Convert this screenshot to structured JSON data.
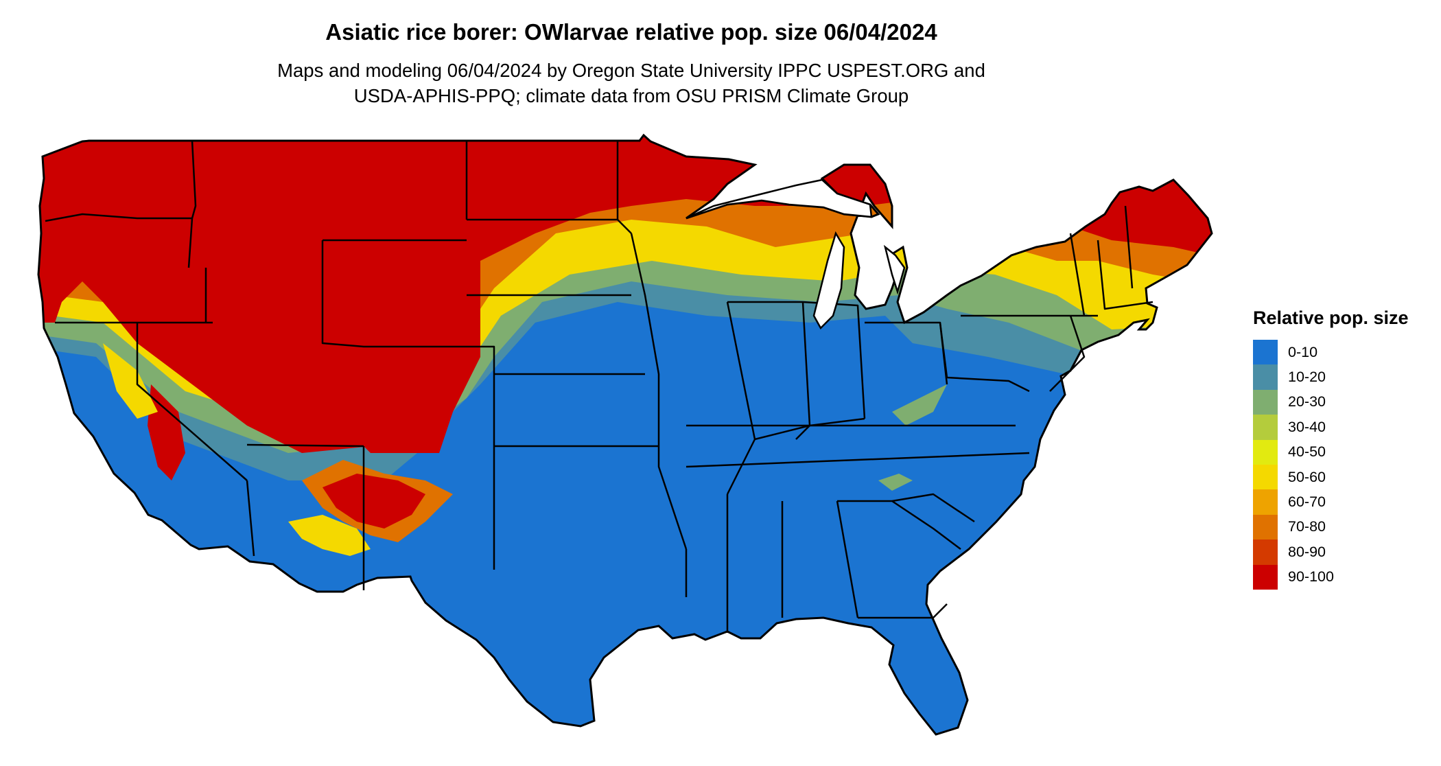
{
  "map": {
    "title": "Asiatic rice borer: OWlarvae relative pop. size 06/04/2024",
    "subtitle_line1": "Maps and modeling 06/04/2024 by Oregon State University IPPC USPEST.ORG and",
    "subtitle_line2": "USDA-APHIS-PPQ; climate data from OSU PRISM Climate Group",
    "region": "contiguous United States with state boundaries",
    "background_color": "#1b74d1",
    "border_color": "#000000"
  },
  "legend": {
    "title": "Relative pop. size",
    "items": [
      {
        "label": "0-10",
        "color": "#1b74d1"
      },
      {
        "label": "10-20",
        "color": "#4a8ea6"
      },
      {
        "label": "20-30",
        "color": "#7fae70"
      },
      {
        "label": "30-40",
        "color": "#b4cc3c"
      },
      {
        "label": "40-50",
        "color": "#e2ea10"
      },
      {
        "label": "50-60",
        "color": "#f4d900"
      },
      {
        "label": "60-70",
        "color": "#eea300"
      },
      {
        "label": "70-80",
        "color": "#e07200"
      },
      {
        "label": "80-90",
        "color": "#d43a00"
      },
      {
        "label": "90-100",
        "color": "#cc0000"
      }
    ]
  }
}
